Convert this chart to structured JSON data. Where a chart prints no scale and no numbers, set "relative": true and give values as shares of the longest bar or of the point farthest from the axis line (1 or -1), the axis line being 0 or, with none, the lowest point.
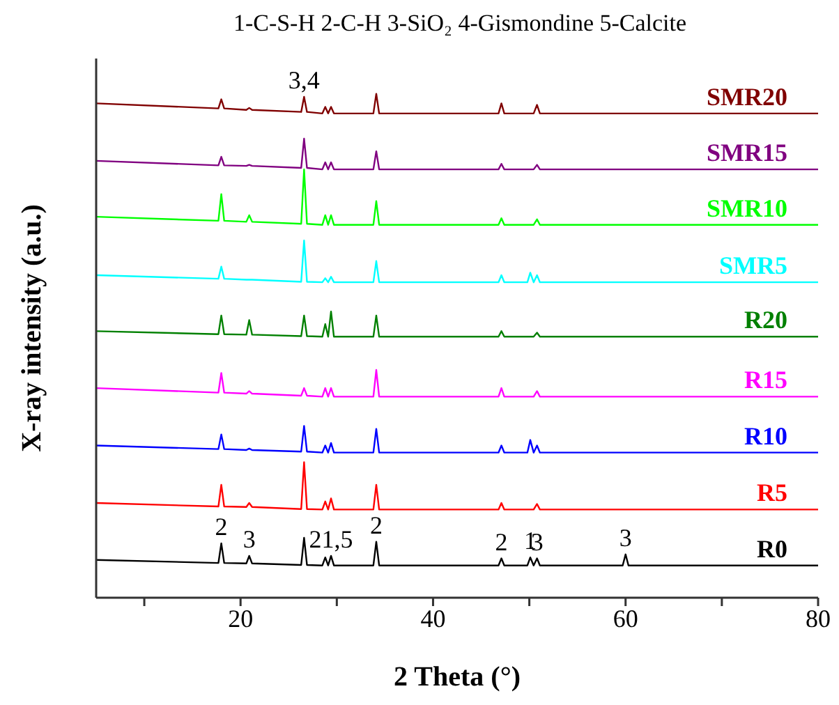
{
  "chart_data": {
    "type": "line",
    "title": "1-C-S-H  2-C-H  3-SiO₂  4-Gismondine  5-Calcite",
    "xlabel": "2 Theta (°)",
    "ylabel": "X-ray intensity (a.u.)",
    "relative": true,
    "x": [
      5,
      17.7,
      18,
      18.3,
      20.6,
      20.9,
      21.2,
      26.3,
      26.6,
      26.9,
      28.5,
      28.8,
      29.1,
      29.4,
      29.7,
      33.8,
      34.1,
      34.4,
      46.8,
      47.1,
      47.4,
      49.8,
      50.1,
      50.45,
      50.8,
      51.1,
      59.7,
      60,
      60.3,
      80
    ],
    "xlim": [
      5,
      80
    ],
    "xticks": [
      {
        "value": 10,
        "label": null
      },
      20,
      {
        "value": 30,
        "label": null
      },
      40,
      {
        "value": 50,
        "label": null
      },
      60,
      {
        "value": 70,
        "label": null
      },
      80
    ],
    "series": [
      {
        "name": "R0",
        "color": "#000000",
        "values": [
          0.075,
          0.069,
          0.108,
          0.069,
          0.068,
          0.083,
          0.068,
          0.065,
          0.119,
          0.065,
          0.064,
          0.08,
          0.064,
          0.083,
          0.064,
          0.064,
          0.111,
          0.064,
          0.064,
          0.078,
          0.064,
          0.064,
          0.08,
          0.064,
          0.078,
          0.064,
          0.064,
          0.086,
          0.064,
          0.064
        ]
      },
      {
        "name": "R5",
        "color": "#ff0000",
        "values": [
          0.188,
          0.181,
          0.224,
          0.181,
          0.18,
          0.188,
          0.18,
          0.176,
          0.269,
          0.176,
          0.175,
          0.191,
          0.175,
          0.197,
          0.175,
          0.175,
          0.224,
          0.175,
          0.175,
          0.188,
          0.175,
          0.175,
          0.175,
          0.175,
          0.186,
          0.175,
          0.175,
          0.175,
          0.175,
          0.175
        ]
      },
      {
        "name": "R10",
        "color": "#0000ff",
        "values": [
          0.302,
          0.295,
          0.324,
          0.295,
          0.293,
          0.296,
          0.293,
          0.29,
          0.341,
          0.29,
          0.288,
          0.302,
          0.288,
          0.307,
          0.288,
          0.288,
          0.335,
          0.288,
          0.288,
          0.302,
          0.288,
          0.288,
          0.313,
          0.288,
          0.302,
          0.288,
          0.288,
          0.288,
          0.288,
          0.288
        ]
      },
      {
        "name": "R15",
        "color": "#ff00ff",
        "values": [
          0.416,
          0.407,
          0.446,
          0.407,
          0.405,
          0.41,
          0.405,
          0.401,
          0.416,
          0.401,
          0.399,
          0.416,
          0.399,
          0.416,
          0.399,
          0.399,
          0.452,
          0.399,
          0.399,
          0.416,
          0.399,
          0.399,
          0.399,
          0.399,
          0.41,
          0.399,
          0.399,
          0.399,
          0.399,
          0.399
        ]
      },
      {
        "name": "R20",
        "color": "#008000",
        "values": [
          0.529,
          0.523,
          0.56,
          0.523,
          0.522,
          0.551,
          0.522,
          0.519,
          0.56,
          0.519,
          0.518,
          0.543,
          0.518,
          0.568,
          0.518,
          0.518,
          0.56,
          0.518,
          0.518,
          0.529,
          0.518,
          0.518,
          0.518,
          0.518,
          0.526,
          0.518,
          0.518,
          0.518,
          0.518,
          0.518
        ]
      },
      {
        "name": "SMR5",
        "color": "#00ffff",
        "values": [
          0.64,
          0.633,
          0.657,
          0.633,
          0.631,
          0.631,
          0.631,
          0.627,
          0.709,
          0.627,
          0.626,
          0.634,
          0.626,
          0.637,
          0.626,
          0.626,
          0.668,
          0.626,
          0.626,
          0.64,
          0.626,
          0.626,
          0.645,
          0.626,
          0.64,
          0.626,
          0.626,
          0.626,
          0.626,
          0.626
        ]
      },
      {
        "name": "SMR10",
        "color": "#00ff00",
        "values": [
          0.756,
          0.748,
          0.801,
          0.748,
          0.746,
          0.759,
          0.746,
          0.742,
          0.85,
          0.742,
          0.74,
          0.759,
          0.74,
          0.759,
          0.74,
          0.74,
          0.787,
          0.74,
          0.74,
          0.753,
          0.74,
          0.74,
          0.74,
          0.74,
          0.751,
          0.74,
          0.74,
          0.74,
          0.74,
          0.74
        ]
      },
      {
        "name": "SMR15",
        "color": "#800080",
        "values": [
          0.867,
          0.858,
          0.875,
          0.858,
          0.857,
          0.859,
          0.857,
          0.853,
          0.911,
          0.853,
          0.85,
          0.864,
          0.85,
          0.864,
          0.85,
          0.85,
          0.886,
          0.85,
          0.85,
          0.861,
          0.85,
          0.85,
          0.85,
          0.85,
          0.859,
          0.85,
          0.85,
          0.85,
          0.85,
          0.85
        ]
      },
      {
        "name": "SMR20",
        "color": "#800000",
        "values": [
          0.981,
          0.971,
          0.989,
          0.971,
          0.968,
          0.972,
          0.968,
          0.964,
          0.994,
          0.964,
          0.961,
          0.974,
          0.961,
          0.974,
          0.961,
          0.961,
          1,
          0.961,
          0.961,
          0.981,
          0.961,
          0.961,
          0.961,
          0.961,
          0.978,
          0.961,
          0.961,
          0.961,
          0.961,
          0.961
        ]
      }
    ],
    "annotations": [
      {
        "text": "3,4",
        "x": 26.6,
        "y": 0.994
      },
      {
        "text": "2",
        "x": 18,
        "y": 0.108
      },
      {
        "text": "3",
        "x": 20.9,
        "y": 0.083
      },
      {
        "text": "21,5",
        "x": 29.4,
        "y": 0.083
      },
      {
        "text": "2",
        "x": 34.1,
        "y": 0.111
      },
      {
        "text": "2",
        "x": 47.1,
        "y": 0.078
      },
      {
        "text": "1",
        "x": 50.1,
        "y": 0.08
      },
      {
        "text": "3",
        "x": 50.8,
        "y": 0.078
      },
      {
        "text": "3",
        "x": 60,
        "y": 0.086
      }
    ]
  }
}
